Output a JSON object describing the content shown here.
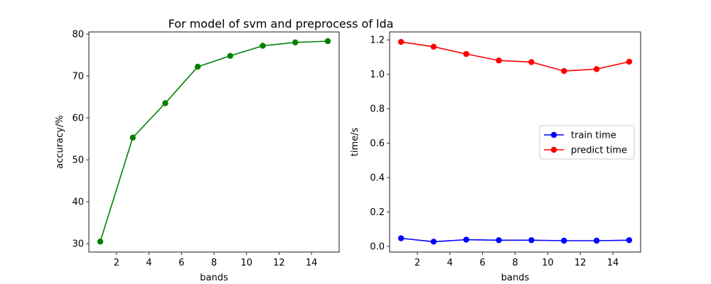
{
  "figure": {
    "title": "For model of svm and preprocess of lda"
  },
  "chart_data": [
    {
      "type": "line",
      "xlabel": "bands",
      "ylabel": "accuracy/%",
      "x": [
        1,
        3,
        5,
        7,
        9,
        11,
        13,
        15
      ],
      "xlim": [
        0.3,
        15.7
      ],
      "ylim": [
        28.0,
        80.5
      ],
      "xticks": [
        2,
        4,
        6,
        8,
        10,
        12,
        14
      ],
      "yticks": [
        30,
        40,
        50,
        60,
        70,
        80
      ],
      "grid": false,
      "series": [
        {
          "color": "#008000",
          "marker": "circle",
          "values": [
            30.5,
            55.3,
            63.5,
            72.2,
            74.8,
            77.2,
            78.0,
            78.3
          ]
        }
      ]
    },
    {
      "type": "line",
      "xlabel": "bands",
      "ylabel": "time/s",
      "x": [
        1,
        3,
        5,
        7,
        9,
        11,
        13,
        15
      ],
      "xlim": [
        0.3,
        15.7
      ],
      "ylim": [
        -0.033,
        1.246
      ],
      "xticks": [
        2,
        4,
        6,
        8,
        10,
        12,
        14
      ],
      "yticks": [
        0.0,
        0.2,
        0.4,
        0.6,
        0.8,
        1.0,
        1.2
      ],
      "grid": false,
      "legend": "center-right",
      "series": [
        {
          "name": "train time",
          "color": "#0000ff",
          "marker": "circle",
          "values": [
            0.047,
            0.027,
            0.039,
            0.036,
            0.036,
            0.033,
            0.033,
            0.036
          ]
        },
        {
          "name": "predict time",
          "color": "#ff0000",
          "marker": "circle",
          "values": [
            1.188,
            1.16,
            1.118,
            1.08,
            1.071,
            1.019,
            1.03,
            1.073
          ]
        }
      ]
    }
  ]
}
